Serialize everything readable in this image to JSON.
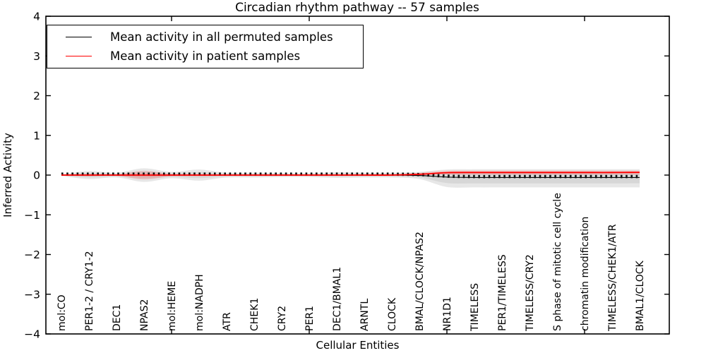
{
  "title": "Circadian rhythm pathway -- 57 samples",
  "axes": {
    "ylabel": "Inferred Activity",
    "xlabel": "Cellular Entities",
    "yticks": [
      "4",
      "3",
      "2",
      "1",
      "0",
      "−1",
      "−2",
      "−3",
      "−4"
    ],
    "ytick_values": [
      4,
      3,
      2,
      1,
      0,
      -1,
      -2,
      -3,
      -4
    ],
    "xtick_values": [
      5,
      10,
      15,
      20
    ]
  },
  "legend": {
    "items": [
      {
        "label": "Mean activity in all permuted samples",
        "color": "#000000"
      },
      {
        "label": "Mean activity in patient samples",
        "color": "#ff0000"
      }
    ]
  },
  "chart_data": {
    "type": "line",
    "title": "Circadian rhythm pathway -- 57 samples",
    "xlabel": "Cellular Entities",
    "ylabel": "Inferred Activity",
    "ylim": [
      -4,
      4
    ],
    "grid": false,
    "legend_position": "upper left",
    "categories": [
      "mol:CO",
      "PER1-2 / CRY1-2",
      "DEC1",
      "NPAS2",
      "mol:HEME",
      "mol:NADPH",
      "ATR",
      "CHEK1",
      "CRY2",
      "PER1",
      "DEC1/BMAL1",
      "ARNTL",
      "CLOCK",
      "BMAL/CLOCK/NPAS2",
      "NR1D1",
      "TIMELESS",
      "PER1/TIMELESS",
      "TIMELESS/CRY2",
      "S phase of mitotic cell cycle",
      "chromatin modification",
      "TIMELESS/CHEK1/ATR",
      "BMAL1/CLOCK"
    ],
    "series": [
      {
        "name": "Mean activity in all permuted samples",
        "color": "#000000",
        "values": [
          0,
          0,
          0,
          0,
          0,
          0,
          0,
          0,
          0,
          0,
          0,
          0,
          0,
          -0.01,
          -0.05,
          -0.06,
          -0.06,
          -0.06,
          -0.06,
          -0.06,
          -0.06,
          -0.06
        ]
      },
      {
        "name": "Mean activity in patient samples",
        "color": "#ff0000",
        "values": [
          0,
          0,
          0,
          0,
          0,
          0,
          0,
          0,
          0,
          0,
          0,
          0,
          0,
          0.02,
          0.06,
          0.065,
          0.065,
          0.065,
          0.065,
          0.065,
          0.065,
          0.07
        ]
      }
    ],
    "bands": [
      {
        "name": "permuted-samples-range",
        "color": "rgba(120,120,120,0.18)",
        "upper": [
          0.02,
          0.1,
          0.06,
          0.17,
          0.08,
          0.14,
          0.06,
          0.06,
          0.05,
          0.05,
          0.07,
          0.06,
          0.06,
          0.08,
          0.14,
          0.145,
          0.145,
          0.145,
          0.145,
          0.145,
          0.145,
          0.145
        ],
        "lower": [
          -0.02,
          -0.1,
          -0.06,
          -0.17,
          -0.08,
          -0.14,
          -0.06,
          -0.06,
          -0.05,
          -0.05,
          -0.07,
          -0.06,
          -0.06,
          -0.1,
          -0.3,
          -0.31,
          -0.31,
          -0.31,
          -0.31,
          -0.31,
          -0.31,
          -0.31
        ]
      },
      {
        "name": "patient-samples-range",
        "color": "rgba(255,0,0,0.13)",
        "upper": [
          0.01,
          0.03,
          0.02,
          0.11,
          0.03,
          0.03,
          0.01,
          0.01,
          0.01,
          0.01,
          0.01,
          0.01,
          0.01,
          0.06,
          0.11,
          0.115,
          0.115,
          0.115,
          0.115,
          0.115,
          0.115,
          0.115
        ],
        "lower": [
          -0.01,
          -0.03,
          -0.02,
          -0.11,
          -0.03,
          -0.03,
          -0.01,
          -0.01,
          -0.01,
          -0.01,
          -0.01,
          -0.01,
          -0.01,
          0.0,
          0.01,
          0.01,
          0.01,
          0.01,
          0.01,
          0.01,
          0.01,
          0.01
        ]
      }
    ]
  }
}
